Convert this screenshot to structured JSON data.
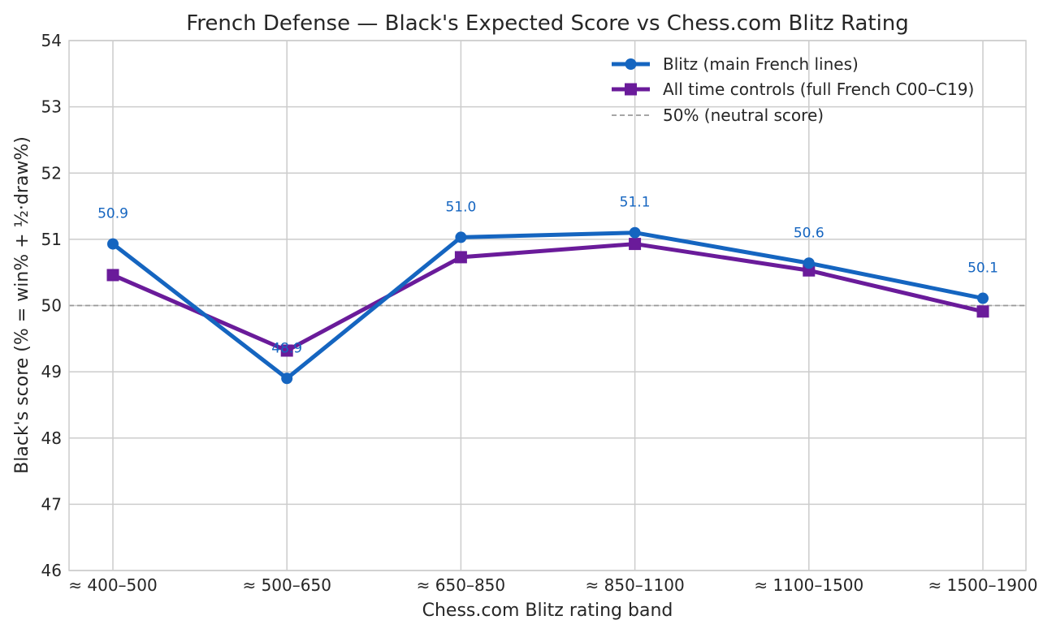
{
  "chart_data": {
    "type": "line",
    "title": "French Defense — Black's Expected Score vs Chess.com Blitz Rating",
    "xlabel": "Chess.com Blitz rating band",
    "ylabel": "Black's score (% = win% + ½·draw%)",
    "categories": [
      "≈ 400–500",
      "≈ 500–650",
      "≈ 650–850",
      "≈ 850–1100",
      "≈ 1100–1500",
      "≈ 1500–1900"
    ],
    "ylim": [
      46,
      54
    ],
    "yticks": [
      46,
      47,
      48,
      49,
      50,
      51,
      52,
      53,
      54
    ],
    "grid": true,
    "legend_position": "top-right",
    "series": [
      {
        "name": "Blitz (main French lines)",
        "values": [
          50.93,
          48.9,
          51.03,
          51.1,
          50.64,
          50.11
        ],
        "data_labels": [
          "50.9",
          "48.9",
          "51.0",
          "51.1",
          "50.6",
          "50.1"
        ],
        "color": "#1565C0",
        "marker": "circle"
      },
      {
        "name": "All time controls (full French C00–C19)",
        "values": [
          50.46,
          49.32,
          50.73,
          50.93,
          50.53,
          49.91
        ],
        "color": "#6A1B9A",
        "marker": "square"
      }
    ],
    "reference_line": {
      "name": "50% (neutral score)",
      "value": 50,
      "color": "#999999",
      "style": "dashed"
    }
  }
}
